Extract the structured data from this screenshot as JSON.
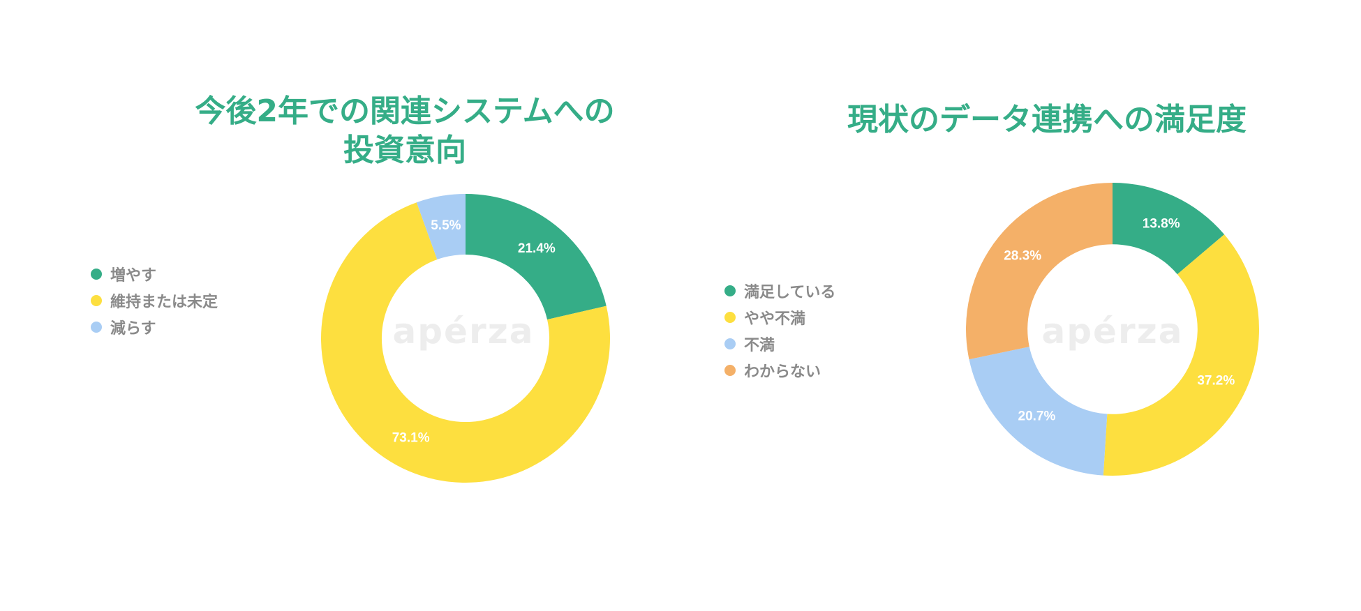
{
  "watermark": "apérza",
  "colors": {
    "title": "#35ad87",
    "legend_text": "#8a8a8a",
    "label_text": "#ffffff"
  },
  "chart_data": [
    {
      "type": "pie",
      "donut": true,
      "title_lines": [
        "今後2年での関連システムへの",
        "投資意向"
      ],
      "legend_position": "left",
      "slices": [
        {
          "label": "増やす",
          "value": 21.4,
          "display": "21.4%",
          "color": "#35ad87"
        },
        {
          "label": "維持または未定",
          "value": 73.1,
          "display": "73.1%",
          "color": "#fddf3f"
        },
        {
          "label": "減らす",
          "value": 5.5,
          "display": "5.5%",
          "color": "#a9cdf4"
        }
      ]
    },
    {
      "type": "pie",
      "donut": true,
      "title_lines": [
        "現状のデータ連携への満足度"
      ],
      "legend_position": "left",
      "slices": [
        {
          "label": "満足している",
          "value": 13.8,
          "display": "13.8%",
          "color": "#35ad87"
        },
        {
          "label": "やや不満",
          "value": 37.2,
          "display": "37.2%",
          "color": "#fddf3f"
        },
        {
          "label": "不満",
          "value": 20.7,
          "display": "20.7%",
          "color": "#a9cdf4"
        },
        {
          "label": "わからない",
          "value": 28.3,
          "display": "28.3%",
          "color": "#f4b068"
        }
      ]
    }
  ]
}
